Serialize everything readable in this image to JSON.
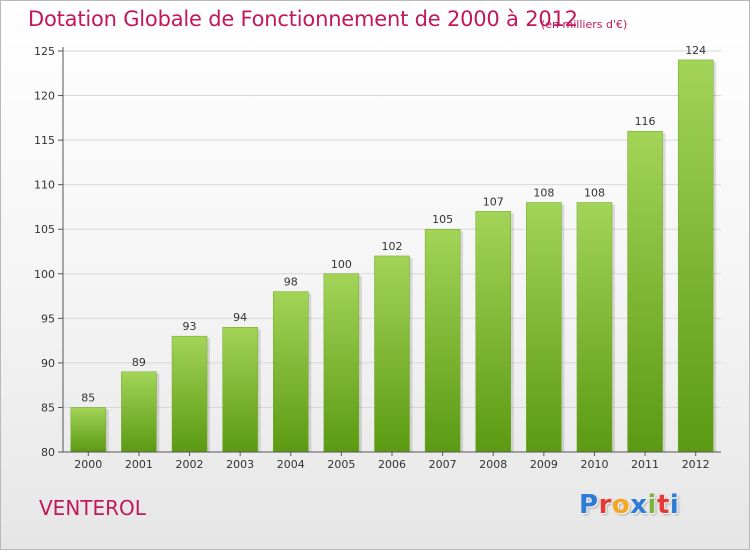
{
  "header": {
    "title": "Dotation Globale de Fonctionnement de 2000 à 2012",
    "unit": "(en milliers d'€)"
  },
  "footer": {
    "town": "VENTEROL",
    "logo_text": "Proxiti"
  },
  "colors": {
    "title": "#c2185b",
    "bar_top": "#a3d458",
    "bar_bottom": "#5b9a12",
    "axis": "#555555",
    "grid": "#d8d8d8",
    "logo": [
      "#2e7bd6",
      "#e53935",
      "#f5a623",
      "#2e7bd6",
      "#7cb342",
      "#e53935",
      "#2e7bd6"
    ]
  },
  "chart_data": {
    "type": "bar",
    "title": "Dotation Globale de Fonctionnement de 2000 à 2012",
    "subtitle": "(en milliers d'€)",
    "categories": [
      "2000",
      "2001",
      "2002",
      "2003",
      "2004",
      "2005",
      "2006",
      "2007",
      "2008",
      "2009",
      "2010",
      "2011",
      "2012"
    ],
    "values": [
      85,
      89,
      93,
      94,
      98,
      100,
      102,
      105,
      107,
      108,
      108,
      116,
      124
    ],
    "ylim": [
      80,
      125
    ],
    "yticks": [
      80,
      85,
      90,
      95,
      100,
      105,
      110,
      115,
      120,
      125
    ],
    "grid": true,
    "legend": "none"
  }
}
